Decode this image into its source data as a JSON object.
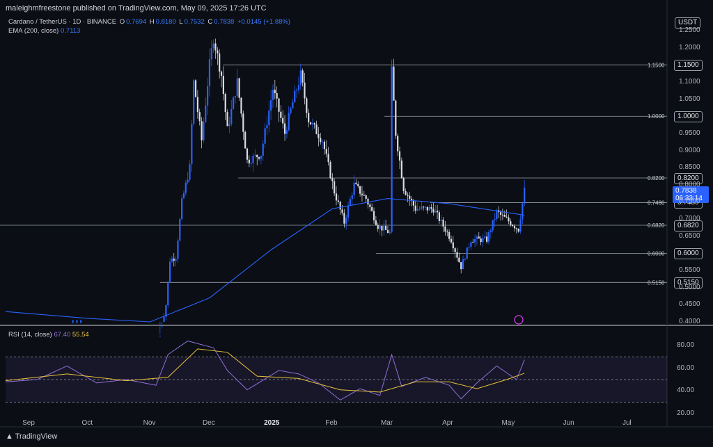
{
  "header": {
    "published": "maleighmfreestone published on TradingView.com, May 09, 2025 17:26 UTC",
    "symbol": "Cardano / TetherUS · 1D · BINANCE",
    "o_label": "O",
    "o": "0.7694",
    "h_label": "H",
    "h": "0.8180",
    "l_label": "L",
    "l": "0.7532",
    "c_label": "C",
    "c": "0.7838",
    "change": "+0.0145 (+1.88%)",
    "ema_label": "EMA (200, close)",
    "ema_value": "0.7113"
  },
  "currency": "USDT",
  "price_tag": {
    "price": "0.7838",
    "timer": "06:33:14"
  },
  "levels": [
    {
      "value": "1.1500"
    },
    {
      "value": "1.0000"
    },
    {
      "value": "0.8200"
    },
    {
      "value": "0.7480"
    },
    {
      "value": "0.6820"
    },
    {
      "value": "0.6000"
    },
    {
      "value": "0.5150"
    }
  ],
  "rsi": {
    "label": "RSI (14, close)",
    "value": "67.40",
    "ma": "55.54"
  },
  "footer": {
    "brand": "TradingView"
  },
  "colors": {
    "up": "#2962ff",
    "down": "#d9dce2",
    "ema": "#2962ff",
    "rsi": "#8e6fd8",
    "rsi_ma": "#e8c23a",
    "bg": "#0b0e14"
  },
  "chart_data": [
    {
      "type": "candlestick",
      "title": "Cardano / TetherUS · 1D · BINANCE",
      "y_ticks": [
        "1.2500",
        "1.2000",
        "1.1500",
        "1.1000",
        "1.0500",
        "1.0000",
        "0.9500",
        "0.9000",
        "0.8500",
        "0.8200",
        "0.8000",
        "0.7838",
        "0.7500",
        "0.7480",
        "0.7000",
        "0.6820",
        "0.6500",
        "0.6000",
        "0.5500",
        "0.5150",
        "0.5000",
        "0.4500",
        "0.4000"
      ],
      "x_ticks": [
        "Sep",
        "Oct",
        "Nov",
        "Dec",
        "2025",
        "Feb",
        "Mar",
        "Apr",
        "May",
        "Jun",
        "Jul"
      ],
      "ylim": [
        0.4,
        1.26
      ],
      "horizontal_levels": [
        1.15,
        1.0,
        0.82,
        0.748,
        0.682,
        0.6,
        0.515
      ],
      "price_points": [
        [
          "2024-11-05",
          0.33
        ],
        [
          "2024-11-09",
          0.45
        ],
        [
          "2024-11-11",
          0.58
        ],
        [
          "2024-11-14",
          0.59
        ],
        [
          "2024-11-17",
          0.75
        ],
        [
          "2024-11-21",
          0.85
        ],
        [
          "2024-11-23",
          1.1
        ],
        [
          "2024-11-27",
          0.93
        ],
        [
          "2024-12-01",
          1.15
        ],
        [
          "2024-12-03",
          1.23
        ],
        [
          "2024-12-07",
          1.12
        ],
        [
          "2024-12-10",
          0.96
        ],
        [
          "2024-12-15",
          1.1
        ],
        [
          "2024-12-20",
          0.87
        ],
        [
          "2024-12-27",
          0.89
        ],
        [
          "2025-01-02",
          1.08
        ],
        [
          "2025-01-08",
          0.95
        ],
        [
          "2025-01-12",
          1.04
        ],
        [
          "2025-01-16",
          1.12
        ],
        [
          "2025-01-20",
          0.99
        ],
        [
          "2025-01-27",
          0.93
        ],
        [
          "2025-02-02",
          0.78
        ],
        [
          "2025-02-07",
          0.69
        ],
        [
          "2025-02-12",
          0.8
        ],
        [
          "2025-02-18",
          0.76
        ],
        [
          "2025-02-24",
          0.68
        ],
        [
          "2025-03-02",
          0.66
        ],
        [
          "2025-03-03",
          1.13
        ],
        [
          "2025-03-05",
          0.95
        ],
        [
          "2025-03-09",
          0.79
        ],
        [
          "2025-03-15",
          0.73
        ],
        [
          "2025-03-24",
          0.73
        ],
        [
          "2025-04-02",
          0.64
        ],
        [
          "2025-04-07",
          0.56
        ],
        [
          "2025-04-12",
          0.64
        ],
        [
          "2025-04-20",
          0.64
        ],
        [
          "2025-04-25",
          0.72
        ],
        [
          "2025-05-02",
          0.69
        ],
        [
          "2025-05-06",
          0.67
        ],
        [
          "2025-05-09",
          0.7838
        ]
      ],
      "ema_200": [
        [
          "2024-08-20",
          0.43
        ],
        [
          "2024-10-01",
          0.41
        ],
        [
          "2024-11-01",
          0.4
        ],
        [
          "2024-12-01",
          0.47
        ],
        [
          "2025-01-01",
          0.61
        ],
        [
          "2025-02-01",
          0.73
        ],
        [
          "2025-03-01",
          0.76
        ],
        [
          "2025-04-01",
          0.745
        ],
        [
          "2025-05-09",
          0.7113
        ]
      ]
    },
    {
      "type": "line",
      "title": "RSI (14, close)",
      "y_ticks": [
        "80.00",
        "60.00",
        "40.00",
        "20.00"
      ],
      "ylim": [
        20,
        85
      ],
      "bands": [
        70,
        50,
        30
      ],
      "series": [
        {
          "name": "RSI",
          "values": [
            [
              "2024-08-20",
              48
            ],
            [
              "2024-09-05",
              50
            ],
            [
              "2024-09-20",
              62
            ],
            [
              "2024-10-05",
              47
            ],
            [
              "2024-10-20",
              50
            ],
            [
              "2024-11-04",
              45
            ],
            [
              "2024-11-10",
              72
            ],
            [
              "2024-11-20",
              84
            ],
            [
              "2024-12-03",
              78
            ],
            [
              "2024-12-10",
              58
            ],
            [
              "2024-12-20",
              41
            ],
            [
              "2025-01-05",
              58
            ],
            [
              "2025-01-15",
              55
            ],
            [
              "2025-01-25",
              47
            ],
            [
              "2025-02-05",
              32
            ],
            [
              "2025-02-15",
              42
            ],
            [
              "2025-02-25",
              36
            ],
            [
              "2025-03-03",
              72
            ],
            [
              "2025-03-08",
              44
            ],
            [
              "2025-03-20",
              52
            ],
            [
              "2025-04-01",
              45
            ],
            [
              "2025-04-07",
              33
            ],
            [
              "2025-04-15",
              47
            ],
            [
              "2025-04-25",
              62
            ],
            [
              "2025-05-05",
              50
            ],
            [
              "2025-05-09",
              67.4
            ]
          ]
        },
        {
          "name": "MA",
          "values": [
            [
              "2024-08-20",
              49
            ],
            [
              "2024-09-20",
              55
            ],
            [
              "2024-10-20",
              49
            ],
            [
              "2024-11-10",
              52
            ],
            [
              "2024-11-25",
              77
            ],
            [
              "2024-12-10",
              74
            ],
            [
              "2024-12-25",
              53
            ],
            [
              "2025-01-15",
              51
            ],
            [
              "2025-02-05",
              41
            ],
            [
              "2025-02-25",
              39
            ],
            [
              "2025-03-15",
              48
            ],
            [
              "2025-04-01",
              48
            ],
            [
              "2025-04-15",
              42
            ],
            [
              "2025-04-30",
              50
            ],
            [
              "2025-05-09",
              55.54
            ]
          ]
        }
      ]
    }
  ]
}
